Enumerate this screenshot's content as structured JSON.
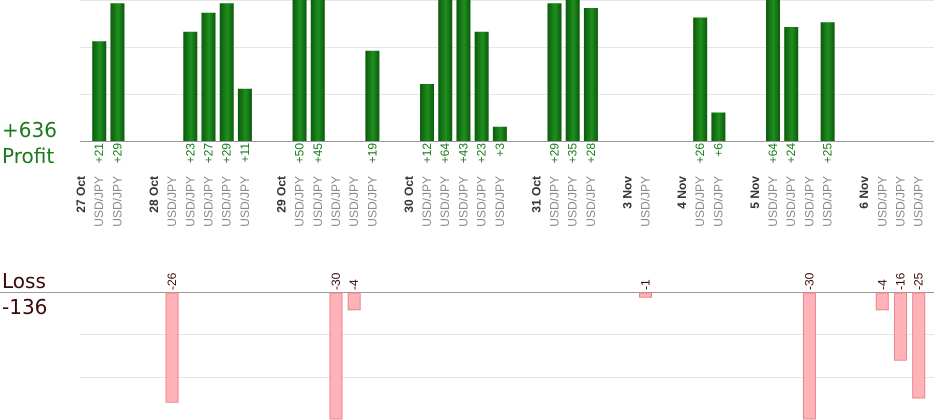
{
  "chart_data": {
    "type": "bar",
    "summary": {
      "profit_total": "+636",
      "profit_label": "Profit",
      "loss_label": "Loss",
      "loss_total": "-136"
    },
    "colors": {
      "profit_dark": "#0b5a0b",
      "profit_light": "#1f8f1f",
      "loss_fill": "#ffb3b8",
      "loss_stroke": "#e8868d",
      "profit_text": "#1a7a1a",
      "loss_text": "#3a0a0a",
      "date_text": "#333333",
      "pair_text": "#8a8a8a",
      "grid": "#e6e6e6",
      "axis": "#999999"
    },
    "profit_ylim": [
      0,
      30
    ],
    "loss_ylim": [
      0,
      26
    ],
    "groups": [
      {
        "date": "27 Oct",
        "trades": [
          {
            "pair": "USD/JPY",
            "profit": 21,
            "label": "+21"
          },
          {
            "pair": "USD/JPY",
            "profit": 29,
            "label": "+29"
          }
        ]
      },
      {
        "date": "28 Oct",
        "trades": [
          {
            "pair": "USD/JPY",
            "loss": 26,
            "label": "-26"
          },
          {
            "pair": "USD/JPY",
            "profit": 23,
            "label": "+23"
          },
          {
            "pair": "USD/JPY",
            "profit": 27,
            "label": "+27"
          },
          {
            "pair": "USD/JPY",
            "profit": 29,
            "label": "+29"
          },
          {
            "pair": "USD/JPY",
            "profit": 11,
            "label": "+11"
          }
        ]
      },
      {
        "date": "29 Oct",
        "trades": [
          {
            "pair": "USD/JPY",
            "profit": 50,
            "label": "+50"
          },
          {
            "pair": "USD/JPY",
            "profit": 45,
            "label": "+45"
          },
          {
            "pair": "USD/JPY",
            "loss": 30,
            "label": "-30"
          },
          {
            "pair": "USD/JPY",
            "loss": 4,
            "label": "-4"
          },
          {
            "pair": "USD/JPY",
            "profit": 19,
            "label": "+19"
          }
        ]
      },
      {
        "date": "30 Oct",
        "trades": [
          {
            "pair": "USD/JPY",
            "profit": 12,
            "label": "+12"
          },
          {
            "pair": "USD/JPY",
            "profit": 64,
            "label": "+64"
          },
          {
            "pair": "USD/JPY",
            "profit": 43,
            "label": "+43"
          },
          {
            "pair": "USD/JPY",
            "profit": 23,
            "label": "+23"
          },
          {
            "pair": "USD/JPY",
            "profit": 3,
            "label": "+3"
          }
        ]
      },
      {
        "date": "31 Oct",
        "trades": [
          {
            "pair": "USD/JPY",
            "profit": 29,
            "label": "+29"
          },
          {
            "pair": "USD/JPY",
            "profit": 35,
            "label": "+35"
          },
          {
            "pair": "USD/JPY",
            "profit": 28,
            "label": "+28"
          }
        ]
      },
      {
        "date": "3 Nov",
        "trades": [
          {
            "pair": "USD/JPY",
            "loss": 1,
            "label": "-1"
          }
        ]
      },
      {
        "date": "4 Nov",
        "trades": [
          {
            "pair": "USD/JPY",
            "profit": 26,
            "label": "+26"
          },
          {
            "pair": "USD/JPY",
            "profit": 6,
            "label": "+6"
          }
        ]
      },
      {
        "date": "5 Nov",
        "trades": [
          {
            "pair": "USD/JPY",
            "profit": 64,
            "label": "+64"
          },
          {
            "pair": "USD/JPY",
            "profit": 24,
            "label": "+24"
          },
          {
            "pair": "USD/JPY",
            "loss": 30,
            "label": "-30"
          },
          {
            "pair": "USD/JPY",
            "profit": 25,
            "label": "+25"
          }
        ]
      },
      {
        "date": "6 Nov",
        "trades": [
          {
            "pair": "USD/JPY",
            "loss": 4,
            "label": "-4"
          },
          {
            "pair": "USD/JPY",
            "loss": 16,
            "label": "-16"
          },
          {
            "pair": "USD/JPY",
            "loss": 25,
            "label": "-25"
          }
        ]
      }
    ]
  }
}
